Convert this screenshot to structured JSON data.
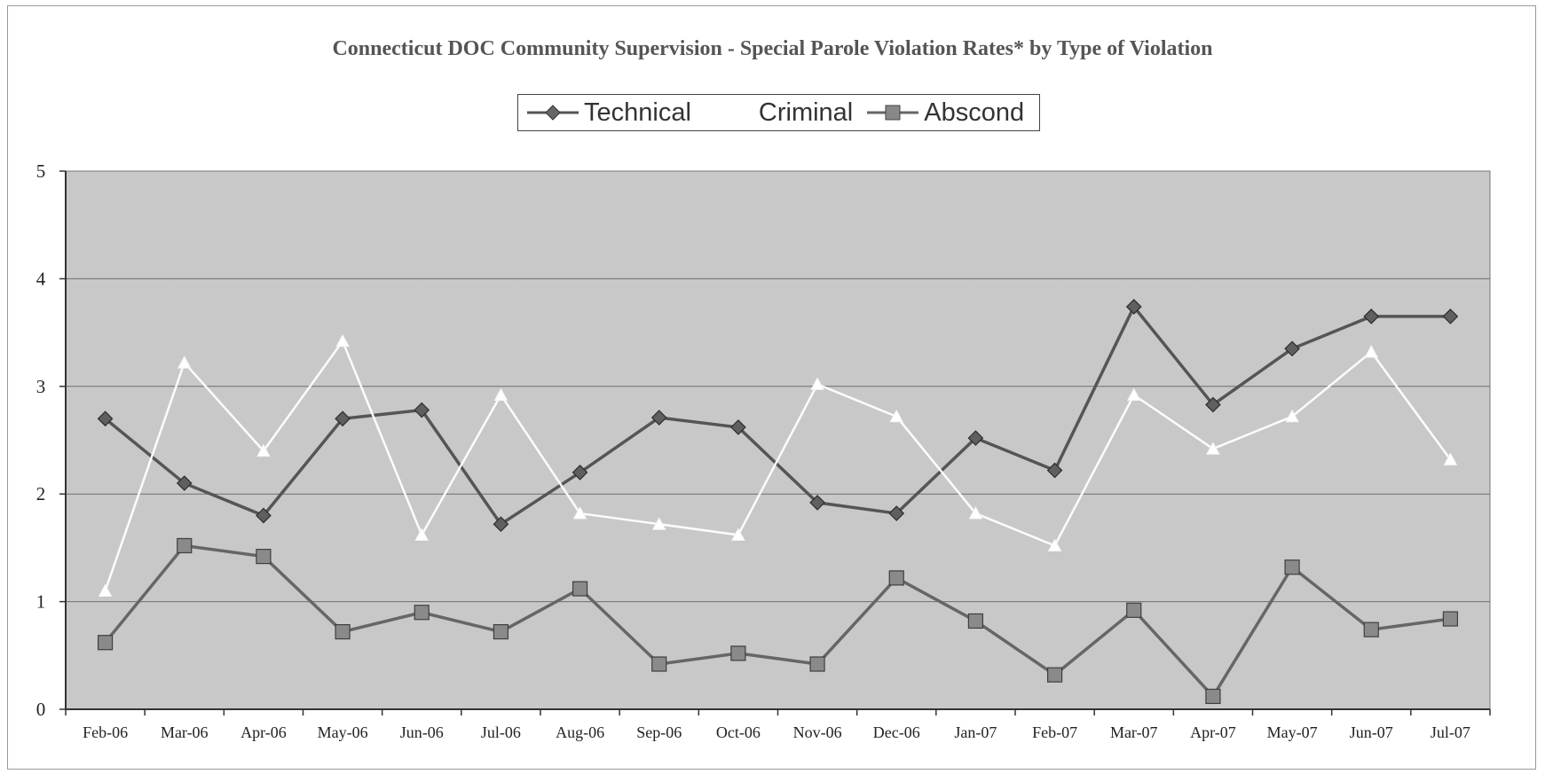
{
  "chart_data": {
    "type": "line",
    "title": "Connecticut DOC Community Supervision -  Special Parole Violation Rates* by Type of Violation",
    "xlabel": "",
    "ylabel": "",
    "ylim": [
      0,
      5
    ],
    "yticks": [
      "0",
      "1",
      "2",
      "3",
      "4",
      "5"
    ],
    "grid": "horizontal",
    "legend_position": "top-center",
    "categories": [
      "Feb-06",
      "Mar-06",
      "Apr-06",
      "May-06",
      "Jun-06",
      "Jul-06",
      "Aug-06",
      "Sep-06",
      "Oct-06",
      "Nov-06",
      "Dec-06",
      "Jan-07",
      "Feb-07",
      "Mar-07",
      "Apr-07",
      "May-07",
      "Jun-07",
      "Jul-07"
    ],
    "series": [
      {
        "name": "Technical",
        "color": "#555555",
        "marker": "diamond",
        "values": [
          2.7,
          2.1,
          1.8,
          2.7,
          2.78,
          1.72,
          2.2,
          2.71,
          2.62,
          1.92,
          1.82,
          2.52,
          2.22,
          3.74,
          2.83,
          3.35,
          3.65,
          3.65
        ]
      },
      {
        "name": "Criminal",
        "color": "#ffffff",
        "marker": "triangle",
        "values": [
          1.1,
          3.22,
          2.4,
          3.42,
          1.62,
          2.92,
          1.82,
          1.72,
          1.62,
          3.02,
          2.72,
          1.82,
          1.52,
          2.92,
          2.42,
          2.72,
          3.32,
          2.32
        ]
      },
      {
        "name": "Abscond",
        "color": "#666666",
        "marker": "square",
        "values": [
          0.62,
          1.52,
          1.42,
          0.72,
          0.9,
          0.72,
          1.12,
          0.42,
          0.52,
          0.42,
          1.22,
          0.82,
          0.32,
          0.92,
          0.12,
          1.32,
          0.74,
          0.84
        ]
      }
    ]
  }
}
